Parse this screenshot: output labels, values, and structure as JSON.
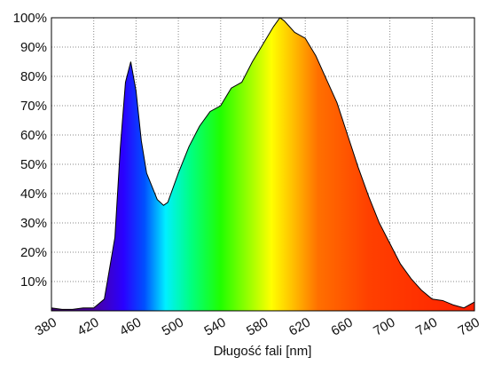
{
  "chart_data": {
    "type": "area",
    "xlabel": "Długość fali [nm]",
    "x": [
      380,
      390,
      400,
      410,
      420,
      430,
      440,
      445,
      450,
      455,
      460,
      465,
      470,
      480,
      486,
      490,
      500,
      510,
      520,
      530,
      540,
      550,
      560,
      570,
      580,
      590,
      596,
      600,
      610,
      620,
      630,
      640,
      650,
      660,
      670,
      680,
      690,
      700,
      710,
      720,
      730,
      740,
      750,
      760,
      770,
      780
    ],
    "values": [
      1,
      0.5,
      0.5,
      1,
      1,
      4,
      25,
      55,
      78,
      85,
      75,
      58,
      47,
      38,
      36,
      37,
      47,
      56,
      63,
      68,
      70,
      76,
      78,
      85,
      91,
      97,
      100,
      99,
      95,
      93,
      87,
      79,
      71,
      60,
      49,
      39,
      30,
      23,
      16,
      11,
      7,
      4,
      3.5,
      2,
      1,
      3
    ],
    "xlim": [
      380,
      780
    ],
    "xticks": [
      380,
      420,
      460,
      500,
      540,
      580,
      620,
      660,
      700,
      740,
      780
    ],
    "ylim": [
      0,
      100
    ],
    "yticks": [
      {
        "value": 10,
        "label": "10%"
      },
      {
        "value": 20,
        "label": "20%"
      },
      {
        "value": 30,
        "label": "30%"
      },
      {
        "value": 40,
        "label": "40%"
      },
      {
        "value": 50,
        "label": "50%"
      },
      {
        "value": 60,
        "label": "60%"
      },
      {
        "value": 70,
        "label": "70%"
      },
      {
        "value": 80,
        "label": "80%"
      },
      {
        "value": 90,
        "label": "90%"
      },
      {
        "value": 100,
        "label": "100%"
      }
    ],
    "grid": true
  }
}
